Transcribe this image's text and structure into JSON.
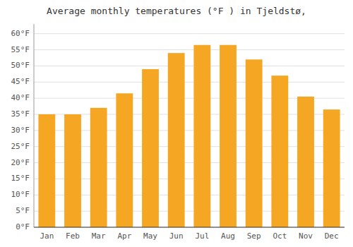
{
  "chart_data": {
    "type": "bar",
    "title": "Average monthly temperatures (°F ) in Tjeldstø,",
    "categories": [
      "Jan",
      "Feb",
      "Mar",
      "Apr",
      "May",
      "Jun",
      "Jul",
      "Aug",
      "Sep",
      "Oct",
      "Nov",
      "Dec"
    ],
    "values": [
      35.0,
      35.0,
      37.0,
      41.5,
      49.0,
      54.0,
      56.5,
      56.5,
      52.0,
      47.0,
      40.5,
      36.5
    ],
    "color": "#F5A623",
    "ylim": [
      0,
      63
    ],
    "yticks": [
      {
        "value": 0,
        "label": "0°F"
      },
      {
        "value": 5,
        "label": "5°F"
      },
      {
        "value": 10,
        "label": "10°F"
      },
      {
        "value": 15,
        "label": "15°F"
      },
      {
        "value": 20,
        "label": "20°F"
      },
      {
        "value": 25,
        "label": "25°F"
      },
      {
        "value": 30,
        "label": "30°F"
      },
      {
        "value": 35,
        "label": "35°F"
      },
      {
        "value": 40,
        "label": "40°F"
      },
      {
        "value": 45,
        "label": "45°F"
      },
      {
        "value": 50,
        "label": "50°F"
      },
      {
        "value": 55,
        "label": "55°F"
      },
      {
        "value": 60,
        "label": "60°F"
      }
    ],
    "grid": true
  }
}
